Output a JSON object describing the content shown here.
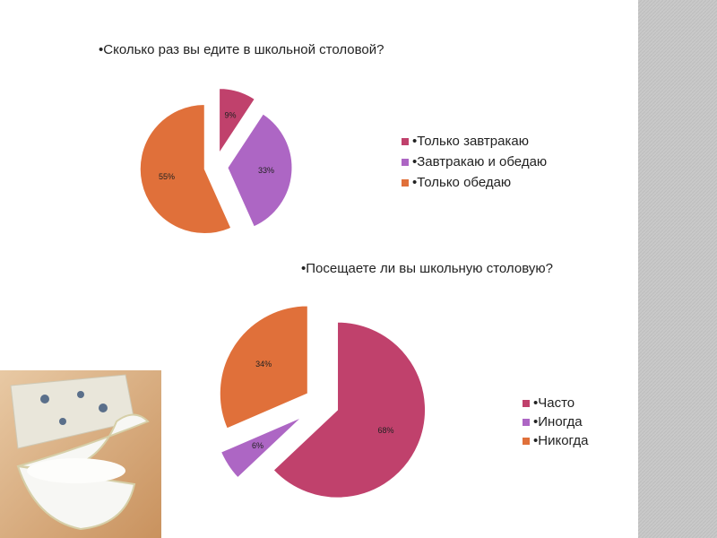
{
  "chart_data": [
    {
      "type": "pie",
      "title": "•Сколько раз вы едите в школьной столовой?",
      "categories": [
        "•Только завтракаю",
        "•Завтракаю и обедаю",
        "•Только обедаю"
      ],
      "values": [
        9,
        33,
        55
      ],
      "value_labels": [
        "9%",
        "33%",
        "55%"
      ],
      "colors": [
        "#c0416c",
        "#ad66c4",
        "#e0703a"
      ]
    },
    {
      "type": "pie",
      "title": "•Посещаете ли вы школьную столовую?",
      "categories": [
        "•Часто",
        "•Иногда",
        "•Никогда"
      ],
      "values": [
        68,
        6,
        34
      ],
      "value_labels": [
        "68%",
        "6%",
        "34%"
      ],
      "colors": [
        "#c0416c",
        "#ad66c4",
        "#e0703a"
      ]
    }
  ]
}
